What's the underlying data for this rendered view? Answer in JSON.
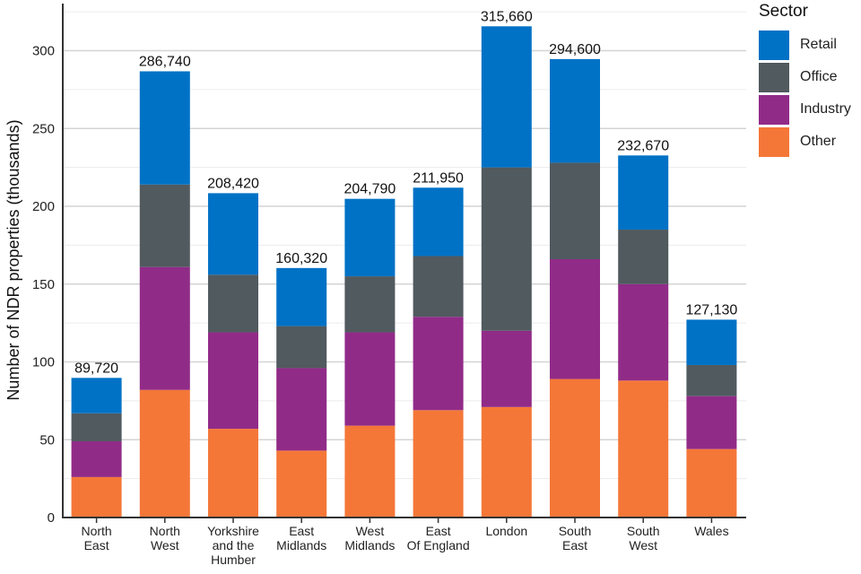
{
  "chart_data": {
    "type": "bar",
    "stacked": true,
    "title": "",
    "xlabel": "",
    "ylabel": "Number of NDR properties (thousands)",
    "ylim": [
      0,
      330
    ],
    "yticks": [
      0,
      50,
      100,
      150,
      200,
      250,
      300
    ],
    "grid": true,
    "legend_title": "Sector",
    "legend_position": "right",
    "categories": [
      [
        "North",
        "East"
      ],
      [
        "North",
        "West"
      ],
      [
        "Yorkshire",
        "and the",
        "Humber"
      ],
      [
        "East",
        "Midlands"
      ],
      [
        "West",
        "Midlands"
      ],
      [
        "East",
        "Of England"
      ],
      [
        "London"
      ],
      [
        "South",
        "East"
      ],
      [
        "South",
        "West"
      ],
      [
        "Wales"
      ]
    ],
    "totals_labels": [
      "89,720",
      "286,740",
      "208,420",
      "160,320",
      "204,790",
      "211,950",
      "315,660",
      "294,600",
      "232,670",
      "127,130"
    ],
    "totals": [
      89.72,
      286.74,
      208.42,
      160.32,
      204.79,
      211.95,
      315.66,
      294.6,
      232.67,
      127.13
    ],
    "series": [
      {
        "name": "Other",
        "color": "#F47738",
        "values": [
          26,
          82,
          57,
          43,
          59,
          69,
          71,
          89,
          88,
          44
        ]
      },
      {
        "name": "Industry",
        "color": "#912B88",
        "values": [
          23,
          79,
          62,
          53,
          60,
          60,
          49,
          77,
          62,
          34
        ]
      },
      {
        "name": "Office",
        "color": "#505A5F",
        "values": [
          18,
          53,
          37,
          27,
          36,
          39,
          105,
          62,
          35,
          20
        ]
      },
      {
        "name": "Retail",
        "color": "#0072C6",
        "values": [
          22.72,
          72.74,
          52.42,
          37.32,
          49.79,
          43.95,
          90.66,
          66.6,
          47.67,
          29.13
        ]
      }
    ],
    "legend_order": [
      "Retail",
      "Office",
      "Industry",
      "Other"
    ]
  }
}
